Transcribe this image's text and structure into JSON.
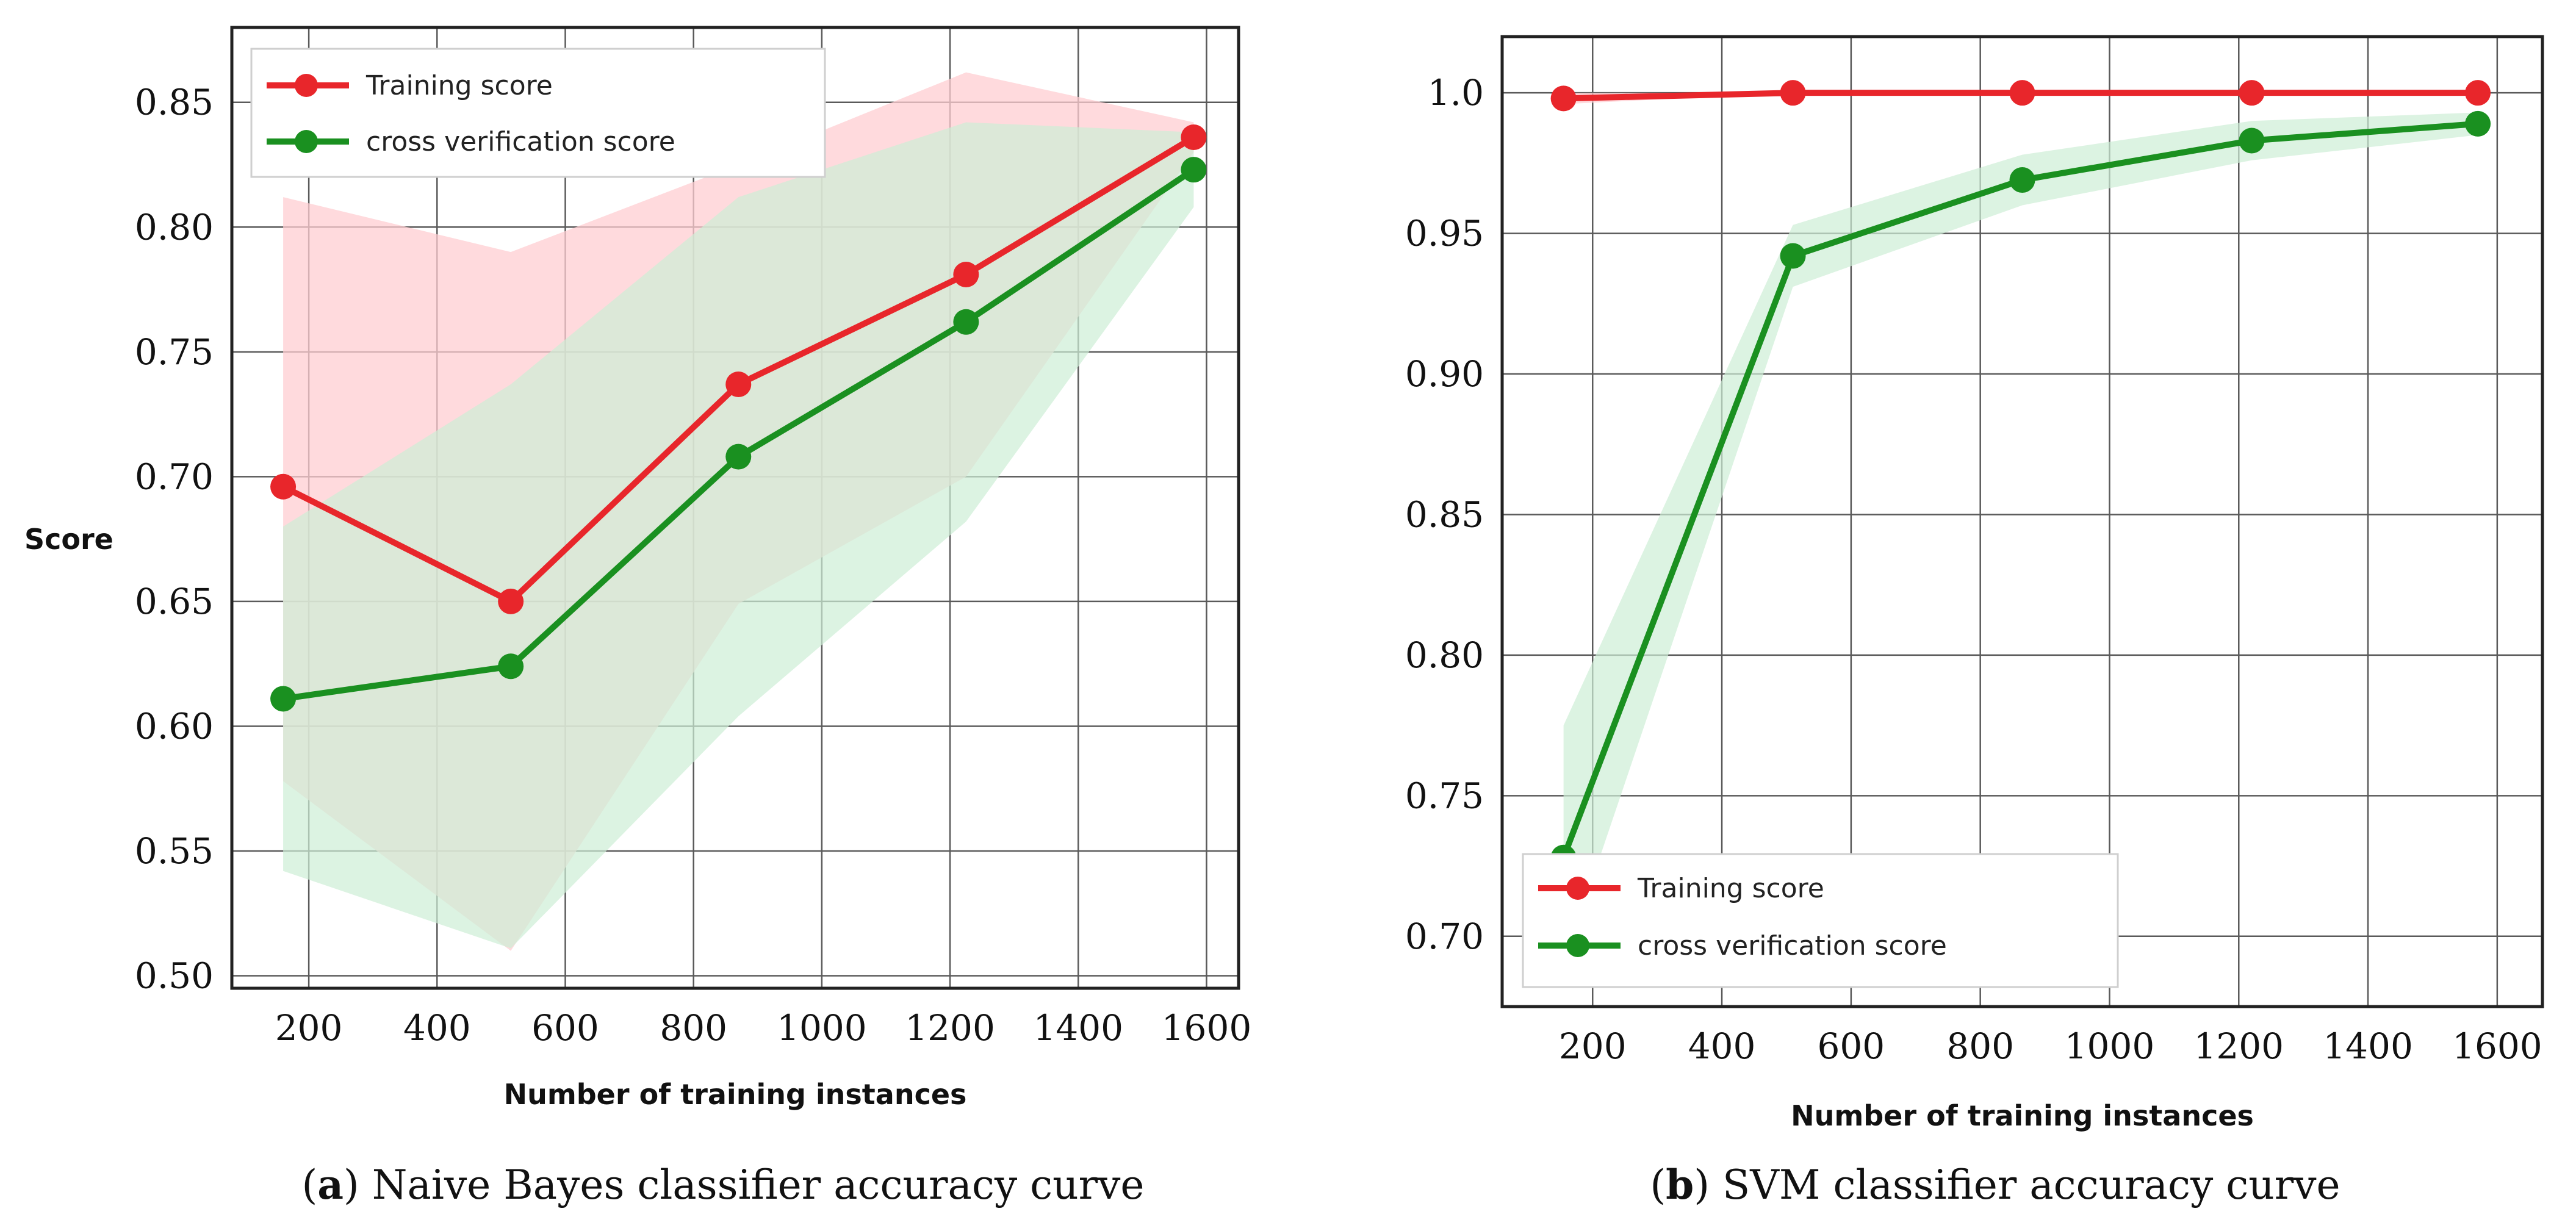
{
  "figure": {
    "panels": [
      {
        "caption_letter": "a",
        "caption_text": "Naive Bayes classifier accuracy curve",
        "legend": [
          "Training score",
          "cross verification score"
        ]
      },
      {
        "caption_letter": "b",
        "caption_text": "SVM classifier accuracy curve",
        "legend": [
          "Training score",
          "cross verification score"
        ]
      }
    ]
  },
  "colors": {
    "training": "#e8262b",
    "cv": "#1a9020",
    "training_band": "#ffcdd2",
    "cv_band": "#cdeed6"
  },
  "chart_data": [
    {
      "type": "line",
      "title": "",
      "xlabel": "Number of training instances",
      "ylabel": "Score",
      "xlim": [
        80,
        1650
      ],
      "ylim": [
        0.495,
        0.88
      ],
      "xticks": [
        200,
        400,
        600,
        800,
        1000,
        1200,
        1400,
        1600
      ],
      "yticks": [
        0.5,
        0.55,
        0.6,
        0.65,
        0.7,
        0.75,
        0.8,
        0.85
      ],
      "ytick_labels": [
        "0.50",
        "0.55",
        "0.60",
        "0.65",
        "0.70",
        "0.75",
        "0.80",
        "0.85"
      ],
      "grid": true,
      "legend_position": "top-left",
      "x": [
        160,
        515,
        870,
        1225,
        1580
      ],
      "series": [
        {
          "name": "Training score",
          "values": [
            0.696,
            0.65,
            0.737,
            0.781,
            0.836
          ],
          "band_upper": [
            0.812,
            0.79,
            0.825,
            0.862,
            0.842
          ],
          "band_lower": [
            0.578,
            0.51,
            0.649,
            0.7,
            0.83
          ]
        },
        {
          "name": "cross verification score",
          "values": [
            0.611,
            0.624,
            0.708,
            0.762,
            0.823
          ],
          "band_upper": [
            0.68,
            0.737,
            0.812,
            0.842,
            0.838
          ],
          "band_lower": [
            0.542,
            0.511,
            0.604,
            0.682,
            0.808
          ]
        }
      ]
    },
    {
      "type": "line",
      "title": "",
      "xlabel": "Number of training instances",
      "ylabel": "",
      "xlim": [
        60,
        1670
      ],
      "ylim": [
        0.675,
        1.02
      ],
      "xticks": [
        200,
        400,
        600,
        800,
        1000,
        1200,
        1400,
        1600
      ],
      "yticks": [
        0.7,
        0.75,
        0.8,
        0.85,
        0.9,
        0.95,
        1.0
      ],
      "ytick_labels": [
        "0.70",
        "0.75",
        "0.80",
        "0.85",
        "0.90",
        "0.95",
        "1.0"
      ],
      "grid": true,
      "legend_position": "bottom-left",
      "x": [
        155,
        510,
        865,
        1220,
        1570
      ],
      "series": [
        {
          "name": "Training score",
          "values": [
            0.998,
            1.0,
            1.0,
            1.0,
            1.0
          ],
          "band_upper": [
            1.0,
            1.0,
            1.0,
            1.0,
            1.0
          ],
          "band_lower": [
            0.996,
            1.0,
            1.0,
            1.0,
            1.0
          ]
        },
        {
          "name": "cross verification score",
          "values": [
            0.728,
            0.942,
            0.969,
            0.983,
            0.989
          ],
          "band_upper": [
            0.775,
            0.953,
            0.978,
            0.99,
            0.993
          ],
          "band_lower": [
            0.69,
            0.931,
            0.96,
            0.976,
            0.985
          ]
        }
      ]
    }
  ]
}
